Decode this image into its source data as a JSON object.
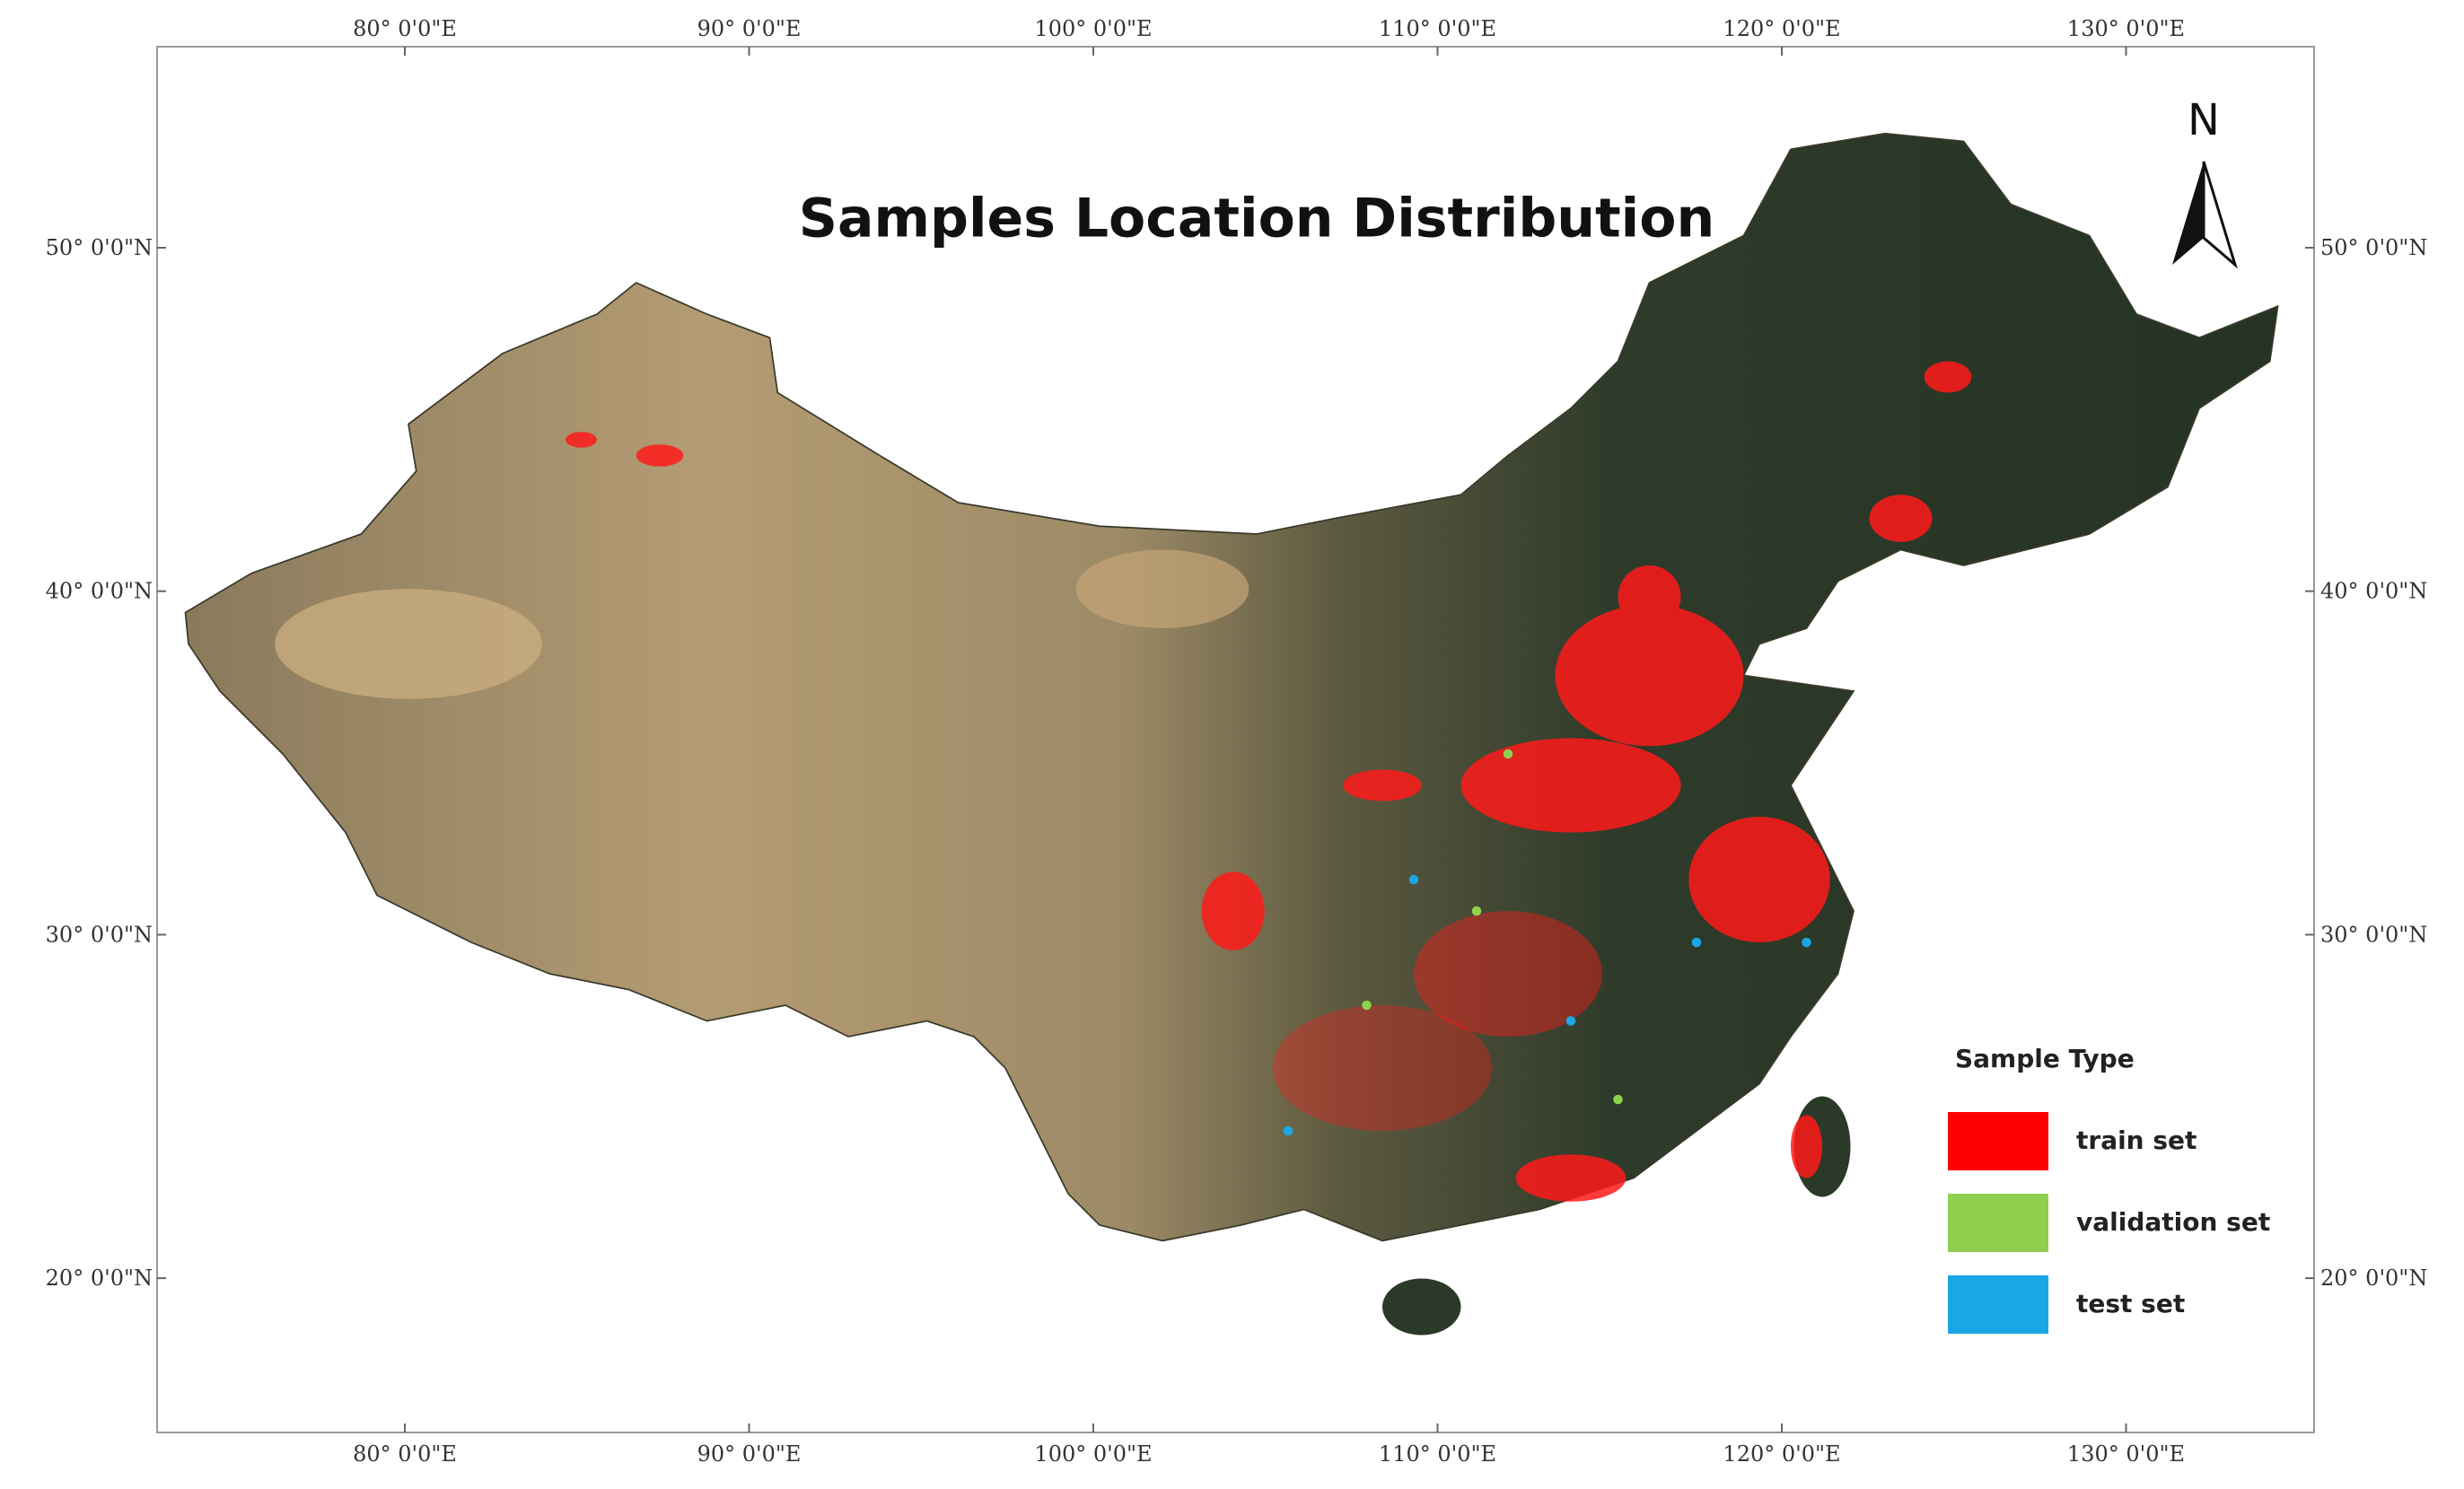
{
  "title": "Samples Location Distribution",
  "north_label": "N",
  "longitude_labels": [
    "80° 0'0\"E",
    "90° 0'0\"E",
    "100° 0'0\"E",
    "110° 0'0\"E",
    "120° 0'0\"E",
    "130° 0'0\"E"
  ],
  "latitude_labels": [
    "50° 0'0\"N",
    "40° 0'0\"N",
    "30° 0'0\"N",
    "20° 0'0\"N"
  ],
  "legend": {
    "title": "Sample Type",
    "items": [
      {
        "label": "train set",
        "color": "#ff0000"
      },
      {
        "label": "validation set",
        "color": "#8fd14f"
      },
      {
        "label": "test set",
        "color": "#1aa7e8"
      }
    ]
  }
}
